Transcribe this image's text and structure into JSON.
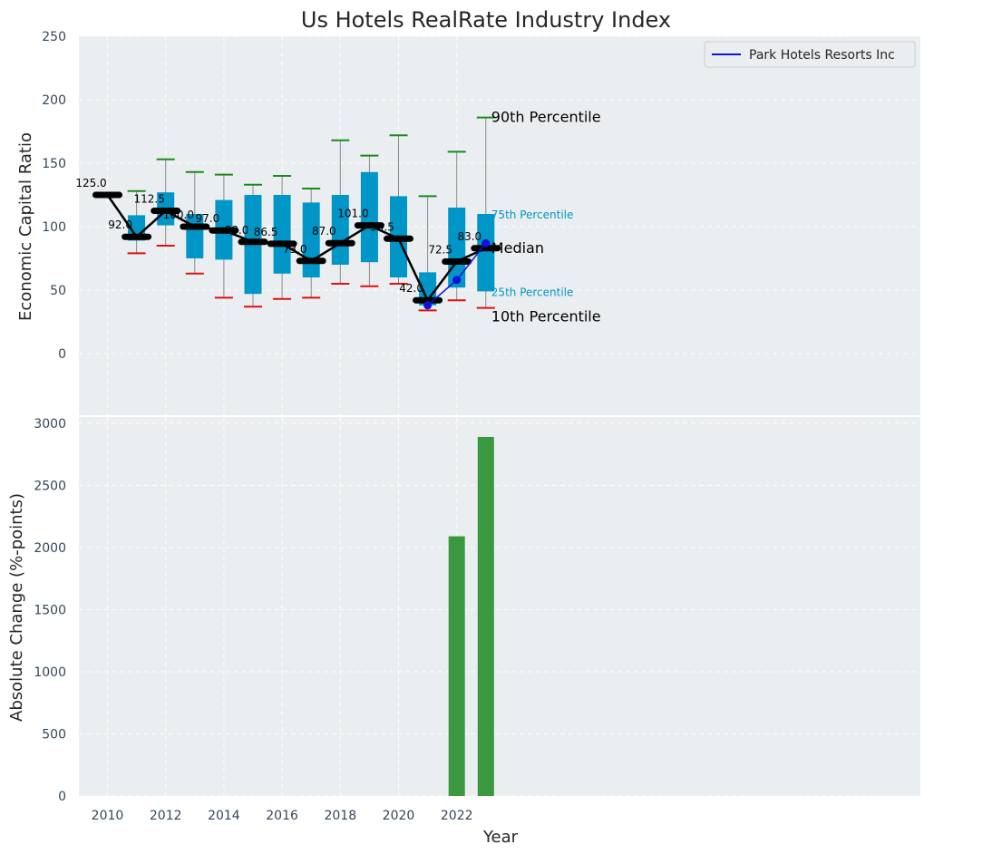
{
  "chart_data": {
    "title": "Us Hotels RealRate Industry Index",
    "xlabel": "Year",
    "x_ticks": [
      "2010",
      "2012",
      "2014",
      "2016",
      "2018",
      "2020",
      "2022"
    ],
    "top_panel": {
      "type": "box",
      "ylabel": "Economic Capital Ratio",
      "ylim": [
        -50,
        250
      ],
      "y_ticks": [
        "0",
        "50",
        "100",
        "150",
        "200",
        "250"
      ],
      "years": [
        2010,
        2011,
        2012,
        2013,
        2014,
        2015,
        2016,
        2017,
        2018,
        2019,
        2020,
        2021,
        2022,
        2023
      ],
      "p10": [
        null,
        79,
        85,
        63,
        44,
        37,
        43,
        44,
        55,
        53,
        55,
        34,
        42,
        36
      ],
      "q1": [
        null,
        89,
        101,
        75,
        74,
        47,
        63,
        60,
        70,
        72,
        60,
        38,
        52,
        49
      ],
      "median": [
        125.0,
        92.0,
        112.5,
        100.0,
        97.0,
        88.0,
        86.5,
        73.0,
        87.0,
        101.0,
        90.5,
        42.0,
        72.5,
        83.0
      ],
      "median_labels": [
        "125.0",
        "92.0",
        "112.5",
        "100.0",
        "97.0",
        "88.0",
        "86.5",
        "73.0",
        "87.0",
        "101.0",
        "90.5",
        "42.0",
        "72.5",
        "83.0"
      ],
      "q3": [
        null,
        109,
        127,
        110,
        121,
        125,
        125,
        119,
        125,
        143,
        124,
        64,
        115,
        110
      ],
      "p90": [
        null,
        128,
        153,
        143,
        141,
        133,
        140,
        130,
        168,
        156,
        172,
        124,
        159,
        186
      ],
      "annotations": {
        "p90": "90th Percentile",
        "p75": "75th Percentile",
        "median": "Median",
        "p25": "25th Percentile",
        "p10": "10th Percentile"
      }
    },
    "company_series": {
      "name": "Park Hotels Resorts Inc",
      "years": [
        2021,
        2022,
        2023
      ],
      "values": [
        38,
        58,
        87
      ]
    },
    "bottom_panel": {
      "type": "bar",
      "ylabel": "Absolute Change (%-points)",
      "ylim": [
        0,
        3050
      ],
      "y_ticks": [
        "0",
        "500",
        "1000",
        "1500",
        "2000",
        "2500",
        "3000"
      ],
      "years": [
        2022,
        2023
      ],
      "values": [
        2090,
        2890
      ]
    },
    "colors": {
      "panel_bg": "#eaeef0",
      "box": "#0096c7",
      "p90_cap": "#1a8a1a",
      "p10_cap": "#e01010",
      "median_line": "#000000",
      "company": "#1111dd",
      "bar": "#3a993f",
      "whisker": "#8a8a8a"
    }
  }
}
